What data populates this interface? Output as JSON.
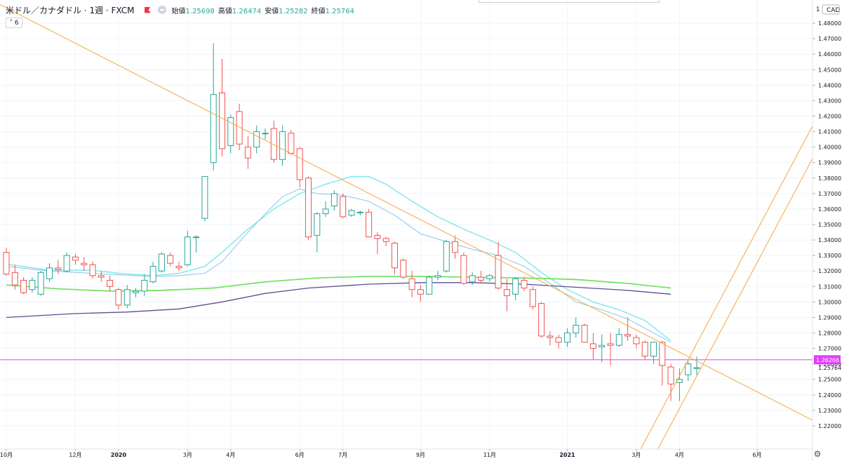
{
  "header": {
    "symbol": "米ドル／カナダドル · 1週 · FXCM",
    "open_label": "始値",
    "open": "1.25698",
    "high_label": "高値",
    "high": "1.26474",
    "low_label": "安値",
    "low": "1.25282",
    "close_label": "終値",
    "close": "1.25764"
  },
  "indicator_toggle": "6",
  "price_axis": {
    "currency": "CAD"
  },
  "colors": {
    "up": "#26a69a",
    "down": "#ef5350",
    "grid": "#f0f3fa",
    "hline": "#e040fb",
    "trend": "#f5a742",
    "ma_cyan": "#7de6f0",
    "ma_blue": "#8fcbe6",
    "ma_green": "#76e365",
    "ma_purple": "#5b4f8f"
  },
  "chart_data": {
    "type": "candlestick",
    "timeframe": "1週",
    "ylim": [
      1.205,
      1.495
    ],
    "yticks": [
      "1.22000",
      "1.23000",
      "1.24000",
      "1.25000",
      "1.26000",
      "1.27000",
      "1.28000",
      "1.29000",
      "1.30000",
      "1.31000",
      "1.32000",
      "1.33000",
      "1.34000",
      "1.35000",
      "1.36000",
      "1.37000",
      "1.38000",
      "1.39000",
      "1.40000",
      "1.41000",
      "1.42000",
      "1.43000",
      "1.44000",
      "1.45000",
      "1.46000",
      "1.47000",
      "1.48000"
    ],
    "top_tick": "1",
    "xticks": [
      {
        "label": "10月",
        "i": 0
      },
      {
        "label": "12月",
        "i": 8
      },
      {
        "label": "2020",
        "i": 13
      },
      {
        "label": "3月",
        "i": 21
      },
      {
        "label": "4月",
        "i": 26
      },
      {
        "label": "6月",
        "i": 34
      },
      {
        "label": "7月",
        "i": 39
      },
      {
        "label": "9月",
        "i": 48
      },
      {
        "label": "11月",
        "i": 56
      },
      {
        "label": "2021",
        "i": 65
      },
      {
        "label": "3月",
        "i": 73
      },
      {
        "label": "4月",
        "i": 78
      },
      {
        "label": "6月",
        "i": 87
      }
    ],
    "price_labels": {
      "hline": "1.26266",
      "last": "1.25764"
    },
    "hline_value": 1.26266,
    "candles": [
      [
        1.332,
        1.335,
        1.317,
        1.318
      ],
      [
        1.319,
        1.324,
        1.308,
        1.311
      ],
      [
        1.314,
        1.316,
        1.305,
        1.306
      ],
      [
        1.308,
        1.316,
        1.306,
        1.314
      ],
      [
        1.305,
        1.32,
        1.304,
        1.319
      ],
      [
        1.315,
        1.325,
        1.313,
        1.322
      ],
      [
        1.322,
        1.327,
        1.318,
        1.321
      ],
      [
        1.32,
        1.332,
        1.319,
        1.33
      ],
      [
        1.329,
        1.331,
        1.324,
        1.327
      ],
      [
        1.325,
        1.329,
        1.32,
        1.324
      ],
      [
        1.324,
        1.326,
        1.315,
        1.317
      ],
      [
        1.317,
        1.32,
        1.313,
        1.316
      ],
      [
        1.314,
        1.317,
        1.307,
        1.31
      ],
      [
        1.308,
        1.309,
        1.295,
        1.298
      ],
      [
        1.298,
        1.311,
        1.296,
        1.308
      ],
      [
        1.306,
        1.309,
        1.303,
        1.307
      ],
      [
        1.307,
        1.318,
        1.304,
        1.314
      ],
      [
        1.313,
        1.326,
        1.312,
        1.323
      ],
      [
        1.32,
        1.332,
        1.319,
        1.331
      ],
      [
        1.33,
        1.332,
        1.323,
        1.325
      ],
      [
        1.323,
        1.326,
        1.32,
        1.322
      ],
      [
        1.324,
        1.346,
        1.323,
        1.342
      ],
      [
        1.342,
        1.343,
        1.332,
        1.342
      ],
      [
        1.354,
        1.381,
        1.352,
        1.381
      ],
      [
        1.39,
        1.467,
        1.385,
        1.434
      ],
      [
        1.435,
        1.457,
        1.394,
        1.399
      ],
      [
        1.401,
        1.421,
        1.396,
        1.419
      ],
      [
        1.423,
        1.428,
        1.398,
        1.402
      ],
      [
        1.4,
        1.407,
        1.386,
        1.393
      ],
      [
        1.4,
        1.414,
        1.396,
        1.41
      ],
      [
        1.409,
        1.412,
        1.405,
        1.409
      ],
      [
        1.412,
        1.417,
        1.39,
        1.392
      ],
      [
        1.392,
        1.414,
        1.388,
        1.41
      ],
      [
        1.409,
        1.411,
        1.395,
        1.396
      ],
      [
        1.399,
        1.4,
        1.374,
        1.379
      ],
      [
        1.38,
        1.381,
        1.34,
        1.342
      ],
      [
        1.343,
        1.358,
        1.332,
        1.357
      ],
      [
        1.357,
        1.365,
        1.355,
        1.36
      ],
      [
        1.362,
        1.372,
        1.359,
        1.37
      ],
      [
        1.368,
        1.37,
        1.354,
        1.355
      ],
      [
        1.356,
        1.36,
        1.355,
        1.359
      ],
      [
        1.358,
        1.359,
        1.356,
        1.358
      ],
      [
        1.358,
        1.36,
        1.342,
        1.342
      ],
      [
        1.343,
        1.345,
        1.331,
        1.341
      ],
      [
        1.341,
        1.342,
        1.336,
        1.339
      ],
      [
        1.338,
        1.339,
        1.318,
        1.322
      ],
      [
        1.327,
        1.328,
        1.315,
        1.316
      ],
      [
        1.315,
        1.32,
        1.303,
        1.308
      ],
      [
        1.308,
        1.311,
        1.3,
        1.305
      ],
      [
        1.305,
        1.317,
        1.305,
        1.316
      ],
      [
        1.316,
        1.32,
        1.314,
        1.317
      ],
      [
        1.32,
        1.34,
        1.319,
        1.339
      ],
      [
        1.339,
        1.343,
        1.328,
        1.332
      ],
      [
        1.33,
        1.332,
        1.311,
        1.312
      ],
      [
        1.313,
        1.319,
        1.311,
        1.317
      ],
      [
        1.316,
        1.32,
        1.312,
        1.314
      ],
      [
        1.315,
        1.318,
        1.313,
        1.317
      ],
      [
        1.33,
        1.339,
        1.308,
        1.309
      ],
      [
        1.308,
        1.315,
        1.294,
        1.304
      ],
      [
        1.305,
        1.316,
        1.301,
        1.315
      ],
      [
        1.314,
        1.316,
        1.307,
        1.309
      ],
      [
        1.308,
        1.31,
        1.295,
        1.297
      ],
      [
        1.299,
        1.3,
        1.277,
        1.278
      ],
      [
        1.278,
        1.281,
        1.272,
        1.277
      ],
      [
        1.277,
        1.279,
        1.27,
        1.274
      ],
      [
        1.274,
        1.283,
        1.271,
        1.28
      ],
      [
        1.28,
        1.29,
        1.277,
        1.285
      ],
      [
        1.285,
        1.286,
        1.274,
        1.274
      ],
      [
        1.273,
        1.28,
        1.263,
        1.27
      ],
      [
        1.271,
        1.279,
        1.261,
        1.272
      ],
      [
        1.273,
        1.28,
        1.259,
        1.272
      ],
      [
        1.272,
        1.283,
        1.271,
        1.279
      ],
      [
        1.279,
        1.29,
        1.275,
        1.278
      ],
      [
        1.277,
        1.279,
        1.27,
        1.273
      ],
      [
        1.274,
        1.275,
        1.263,
        1.265
      ],
      [
        1.265,
        1.274,
        1.26,
        1.274
      ],
      [
        1.274,
        1.275,
        1.246,
        1.259
      ],
      [
        1.258,
        1.26,
        1.236,
        1.247
      ],
      [
        1.248,
        1.257,
        1.236,
        1.25
      ],
      [
        1.253,
        1.262,
        1.249,
        1.26
      ],
      [
        1.257,
        1.2647,
        1.2528,
        1.2576
      ]
    ],
    "moving_averages": [
      {
        "color": "cyan",
        "values": [
          [
            0,
            1.3245
          ],
          [
            5,
            1.3205
          ],
          [
            10,
            1.3205
          ],
          [
            13,
            1.3185
          ],
          [
            17,
            1.317
          ],
          [
            20,
            1.3185
          ],
          [
            23,
            1.323
          ],
          [
            25,
            1.332
          ],
          [
            28,
            1.347
          ],
          [
            31,
            1.36
          ],
          [
            34,
            1.37
          ],
          [
            37,
            1.376
          ],
          [
            40,
            1.381
          ],
          [
            42,
            1.381
          ],
          [
            44,
            1.376
          ],
          [
            47,
            1.365
          ],
          [
            50,
            1.355
          ],
          [
            53,
            1.347
          ],
          [
            56,
            1.34
          ],
          [
            59,
            1.332
          ],
          [
            62,
            1.319
          ],
          [
            65,
            1.308
          ],
          [
            68,
            1.3
          ],
          [
            71,
            1.295
          ],
          [
            74,
            1.288
          ],
          [
            77,
            1.275
          ]
        ]
      },
      {
        "color": "blue",
        "values": [
          [
            0,
            1.323
          ],
          [
            5,
            1.32
          ],
          [
            10,
            1.3185
          ],
          [
            13,
            1.3175
          ],
          [
            17,
            1.3165
          ],
          [
            20,
            1.317
          ],
          [
            23,
            1.3185
          ],
          [
            25,
            1.326
          ],
          [
            28,
            1.345
          ],
          [
            30,
            1.357
          ],
          [
            32,
            1.368
          ],
          [
            34,
            1.373
          ],
          [
            36,
            1.37
          ],
          [
            39,
            1.369
          ],
          [
            42,
            1.365
          ],
          [
            45,
            1.356
          ],
          [
            48,
            1.344
          ],
          [
            51,
            1.339
          ],
          [
            54,
            1.334
          ],
          [
            57,
            1.33
          ],
          [
            60,
            1.323
          ],
          [
            63,
            1.312
          ],
          [
            66,
            1.3
          ],
          [
            69,
            1.295
          ],
          [
            72,
            1.289
          ],
          [
            77,
            1.274
          ]
        ]
      },
      {
        "color": "green",
        "values": [
          [
            0,
            1.311
          ],
          [
            6,
            1.3085
          ],
          [
            12,
            1.307
          ],
          [
            18,
            1.3075
          ],
          [
            24,
            1.309
          ],
          [
            30,
            1.313
          ],
          [
            36,
            1.3155
          ],
          [
            42,
            1.3165
          ],
          [
            48,
            1.3165
          ],
          [
            54,
            1.316
          ],
          [
            60,
            1.3155
          ],
          [
            66,
            1.3145
          ],
          [
            72,
            1.312
          ],
          [
            77,
            1.309
          ]
        ]
      },
      {
        "color": "purple",
        "values": [
          [
            0,
            1.29
          ],
          [
            8,
            1.2925
          ],
          [
            14,
            1.2935
          ],
          [
            20,
            1.2955
          ],
          [
            25,
            1.3
          ],
          [
            30,
            1.3055
          ],
          [
            35,
            1.309
          ],
          [
            42,
            1.3115
          ],
          [
            48,
            1.3125
          ],
          [
            54,
            1.3125
          ],
          [
            60,
            1.3115
          ],
          [
            66,
            1.3095
          ],
          [
            72,
            1.3075
          ],
          [
            77,
            1.305
          ]
        ]
      }
    ],
    "trendlines": [
      {
        "p1": [
          -1.8,
          1.495
        ],
        "p2": [
          94,
          1.222
        ]
      },
      {
        "p1": [
          73.5,
          1.205
        ],
        "p2": [
          96.5,
          1.446
        ]
      },
      {
        "p1": [
          75.5,
          1.205
        ],
        "p2": [
          96.5,
          1.425
        ]
      }
    ]
  }
}
